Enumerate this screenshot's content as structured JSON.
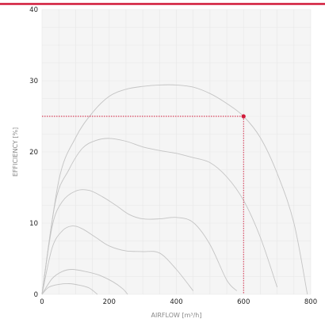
{
  "colors": {
    "accent": "#d11a3a",
    "curve": "#c4c4c4",
    "plot_bg": "#f5f5f5",
    "grid": "#e7e7e7"
  },
  "chart_data": {
    "type": "line",
    "xlabel": "AIRFLOW [m³/h]",
    "ylabel": "EFFICIENCY [%]",
    "xlim": [
      0,
      800
    ],
    "ylim": [
      0,
      40
    ],
    "xticks": [
      0,
      200,
      400,
      600,
      800
    ],
    "yticks": [
      0,
      10,
      20,
      30,
      40
    ],
    "grid": true,
    "series": [
      {
        "points": [
          [
            0,
            0
          ],
          [
            50,
            16
          ],
          [
            100,
            22
          ],
          [
            150,
            25.5
          ],
          [
            200,
            27.8
          ],
          [
            250,
            28.8
          ],
          [
            300,
            29.2
          ],
          [
            350,
            29.4
          ],
          [
            400,
            29.4
          ],
          [
            450,
            29.1
          ],
          [
            500,
            28.2
          ],
          [
            550,
            26.8
          ],
          [
            600,
            25
          ],
          [
            650,
            22
          ],
          [
            700,
            17
          ],
          [
            750,
            10
          ],
          [
            790,
            0
          ]
        ]
      },
      {
        "points": [
          [
            0,
            0
          ],
          [
            40,
            13
          ],
          [
            80,
            17.5
          ],
          [
            120,
            20.5
          ],
          [
            160,
            21.6
          ],
          [
            200,
            21.9
          ],
          [
            250,
            21.5
          ],
          [
            300,
            20.7
          ],
          [
            350,
            20.2
          ],
          [
            400,
            19.8
          ],
          [
            450,
            19.2
          ],
          [
            500,
            18.5
          ],
          [
            550,
            16.5
          ],
          [
            600,
            13.2
          ],
          [
            650,
            8
          ],
          [
            700,
            1
          ]
        ]
      },
      {
        "points": [
          [
            0,
            0
          ],
          [
            30,
            9.5
          ],
          [
            60,
            13
          ],
          [
            100,
            14.5
          ],
          [
            140,
            14.6
          ],
          [
            180,
            13.7
          ],
          [
            220,
            12.5
          ],
          [
            260,
            11.2
          ],
          [
            300,
            10.6
          ],
          [
            350,
            10.6
          ],
          [
            400,
            10.8
          ],
          [
            450,
            10.1
          ],
          [
            500,
            7
          ],
          [
            550,
            2
          ],
          [
            580,
            0.5
          ]
        ]
      },
      {
        "points": [
          [
            0,
            0
          ],
          [
            30,
            6.5
          ],
          [
            60,
            8.9
          ],
          [
            90,
            9.6
          ],
          [
            120,
            9.2
          ],
          [
            160,
            8
          ],
          [
            200,
            6.8
          ],
          [
            250,
            6.1
          ],
          [
            300,
            6
          ],
          [
            350,
            5.8
          ],
          [
            400,
            3.5
          ],
          [
            450,
            0.5
          ]
        ]
      },
      {
        "points": [
          [
            0,
            0
          ],
          [
            30,
            2.2
          ],
          [
            60,
            3.2
          ],
          [
            90,
            3.5
          ],
          [
            130,
            3.2
          ],
          [
            170,
            2.7
          ],
          [
            210,
            1.8
          ],
          [
            240,
            0.8
          ],
          [
            255,
            0
          ]
        ]
      },
      {
        "points": [
          [
            0,
            0
          ],
          [
            20,
            1
          ],
          [
            50,
            1.4
          ],
          [
            80,
            1.5
          ],
          [
            110,
            1.3
          ],
          [
            140,
            0.9
          ],
          [
            165,
            0
          ]
        ]
      }
    ],
    "highlight": {
      "x": 600,
      "y": 25
    }
  }
}
